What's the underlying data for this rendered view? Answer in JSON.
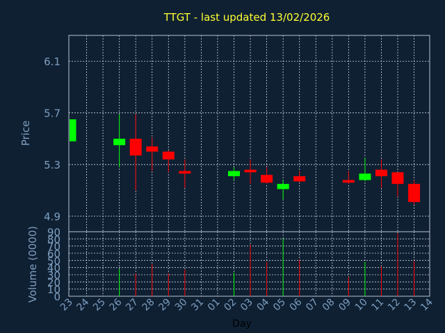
{
  "colors": {
    "background": "#0f2033",
    "title": "#ffff33",
    "axis_text": "#7f9fbf",
    "frame": "#b8c4d0",
    "grid": "#cfd8e2",
    "up": "#00ff00",
    "down": "#ff0000",
    "xlabel": "#000000"
  },
  "chart_data": {
    "type": "candlestick",
    "title": "TTGT - last updated 13/02/2026",
    "ylabel": "Price",
    "volume_ylabel": "Volume (0000)",
    "xlabel": "Day",
    "grid": true,
    "price_ylim": [
      4.78,
      6.3
    ],
    "price_yticks": [
      "4.9",
      "5.3",
      "5.7",
      "6.1"
    ],
    "volume_ylim": [
      0,
      90
    ],
    "volume_yticks": [
      "0",
      "10",
      "20",
      "30",
      "40",
      "50",
      "60",
      "70",
      "80",
      "90"
    ],
    "x_categories": [
      "23",
      "24",
      "25",
      "26",
      "27",
      "28",
      "29",
      "30",
      "31",
      "01",
      "02",
      "03",
      "04",
      "05",
      "06",
      "07",
      "08",
      "09",
      "10",
      "11",
      "12",
      "13",
      "14"
    ],
    "candles": [
      {
        "day": "23",
        "open": 5.48,
        "close": 5.65,
        "high": 5.65,
        "low": 5.48,
        "volume": 0
      },
      {
        "day": "26",
        "open": 5.45,
        "close": 5.5,
        "high": 5.69,
        "low": 5.28,
        "volume": 38
      },
      {
        "day": "27",
        "open": 5.5,
        "close": 5.37,
        "high": 5.69,
        "low": 5.1,
        "volume": 32
      },
      {
        "day": "28",
        "open": 5.44,
        "close": 5.4,
        "high": 5.51,
        "low": 5.25,
        "volume": 45
      },
      {
        "day": "29",
        "open": 5.4,
        "close": 5.34,
        "high": 5.41,
        "low": 5.24,
        "volume": 32
      },
      {
        "day": "30",
        "open": 5.25,
        "close": 5.23,
        "high": 5.34,
        "low": 5.12,
        "volume": 37
      },
      {
        "day": "02",
        "open": 5.21,
        "close": 5.25,
        "high": 5.28,
        "low": 5.18,
        "volume": 33
      },
      {
        "day": "03",
        "open": 5.26,
        "close": 5.24,
        "high": 5.34,
        "low": 5.15,
        "volume": 72
      },
      {
        "day": "04",
        "open": 5.22,
        "close": 5.16,
        "high": 5.28,
        "low": 5.15,
        "volume": 48
      },
      {
        "day": "05",
        "open": 5.11,
        "close": 5.15,
        "high": 5.18,
        "low": 5.03,
        "volume": 80
      },
      {
        "day": "06",
        "open": 5.21,
        "close": 5.17,
        "high": 5.25,
        "low": 5.16,
        "volume": 51
      },
      {
        "day": "09",
        "open": 5.18,
        "close": 5.16,
        "high": 5.25,
        "low": 5.15,
        "volume": 27
      },
      {
        "day": "10",
        "open": 5.18,
        "close": 5.23,
        "high": 5.35,
        "low": 5.17,
        "volume": 48
      },
      {
        "day": "11",
        "open": 5.26,
        "close": 5.21,
        "high": 5.34,
        "low": 5.12,
        "volume": 42
      },
      {
        "day": "12",
        "open": 5.24,
        "close": 5.15,
        "high": 5.24,
        "low": 5.05,
        "volume": 88
      },
      {
        "day": "13",
        "open": 5.15,
        "close": 5.01,
        "high": 5.18,
        "low": 4.99,
        "volume": 49
      }
    ]
  }
}
